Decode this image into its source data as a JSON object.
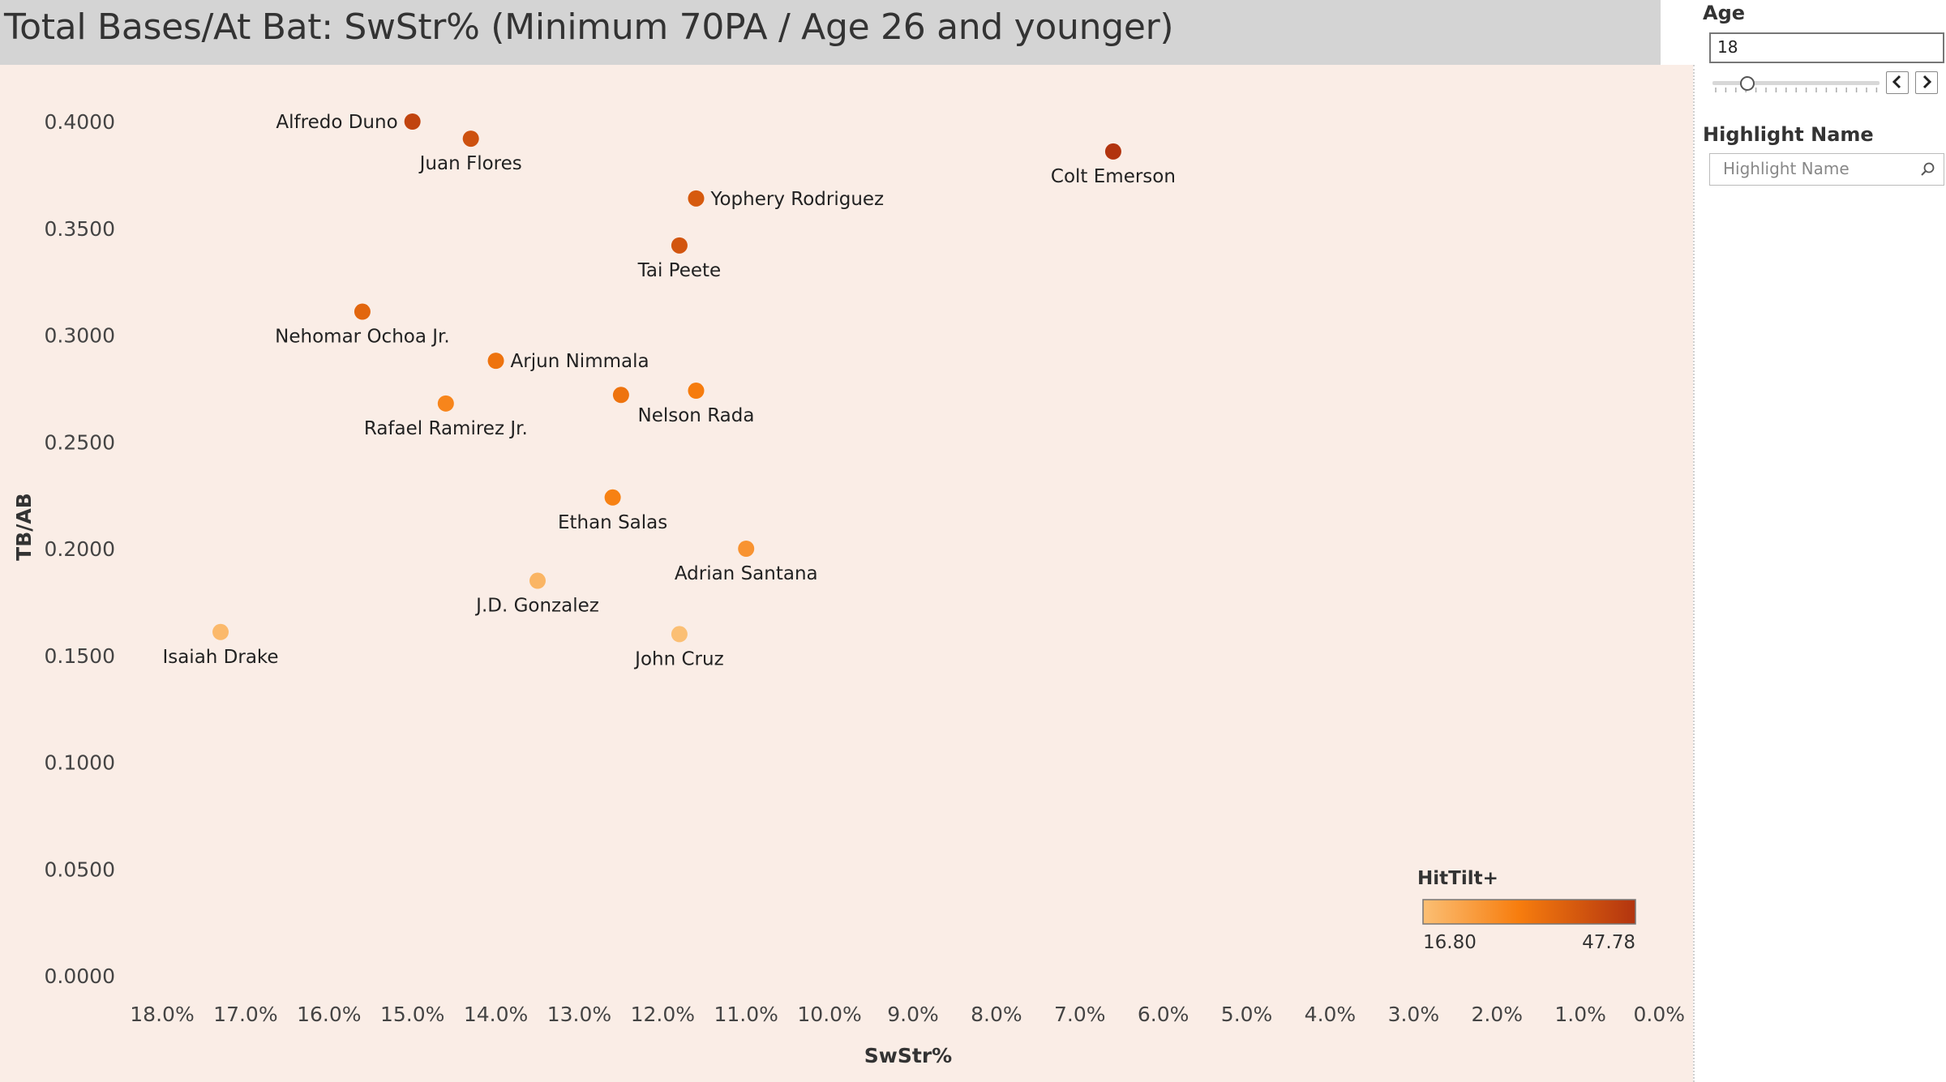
{
  "title": "Total Bases/At Bat: SwStr% (Minimum 70PA / Age 26 and younger)",
  "sidebar": {
    "age_label": "Age",
    "age_value": "18",
    "highlight_label": "Highlight Name",
    "highlight_placeholder": "Highlight Name"
  },
  "legend": {
    "title": "HitTilt+",
    "min_label": "16.80",
    "max_label": "47.78",
    "color_low": "#fbbf74",
    "color_mid": "#f77d0e",
    "color_high": "#b2340f"
  },
  "chart_data": {
    "type": "scatter",
    "title": "Total Bases/At Bat: SwStr% (Minimum 70PA / Age 26 and younger)",
    "xlabel": "SwStr%",
    "ylabel": "TB/AB",
    "x_reversed": true,
    "xlim": [
      18.0,
      0.0
    ],
    "ylim": [
      0.0,
      0.4
    ],
    "x_ticks": [
      "18.0%",
      "17.0%",
      "16.0%",
      "15.0%",
      "14.0%",
      "13.0%",
      "12.0%",
      "11.0%",
      "10.0%",
      "9.0%",
      "8.0%",
      "7.0%",
      "6.0%",
      "5.0%",
      "4.0%",
      "3.0%",
      "2.0%",
      "1.0%",
      "0.0%"
    ],
    "y_ticks": [
      "0.0000",
      "0.0500",
      "0.1000",
      "0.1500",
      "0.2000",
      "0.2500",
      "0.3000",
      "0.3500",
      "0.4000"
    ],
    "color_metric": "HitTilt+",
    "color_range": [
      16.8,
      47.78
    ],
    "points": [
      {
        "name": "Alfredo Duno",
        "x": 15.0,
        "y": 0.4,
        "c": 44.0,
        "label_pos": "left"
      },
      {
        "name": "Juan Flores",
        "x": 14.3,
        "y": 0.392,
        "c": 41.0,
        "label_pos": "below"
      },
      {
        "name": "Colt Emerson",
        "x": 6.6,
        "y": 0.386,
        "c": 47.78,
        "label_pos": "below"
      },
      {
        "name": "Yophery Rodriguez",
        "x": 11.6,
        "y": 0.364,
        "c": 39.0,
        "label_pos": "right"
      },
      {
        "name": "Tai Peete",
        "x": 11.8,
        "y": 0.342,
        "c": 40.0,
        "label_pos": "below"
      },
      {
        "name": "Nehomar Ochoa Jr.",
        "x": 15.6,
        "y": 0.311,
        "c": 36.0,
        "label_pos": "below"
      },
      {
        "name": "Arjun Nimmala",
        "x": 14.0,
        "y": 0.288,
        "c": 33.0,
        "label_pos": "right"
      },
      {
        "name": "",
        "x": 12.5,
        "y": 0.272,
        "c": 33.0,
        "label_pos": "none"
      },
      {
        "name": "Nelson Rada",
        "x": 11.6,
        "y": 0.274,
        "c": 31.0,
        "label_pos": "below"
      },
      {
        "name": "Rafael Ramirez Jr.",
        "x": 14.6,
        "y": 0.268,
        "c": 29.0,
        "label_pos": "below"
      },
      {
        "name": "Ethan Salas",
        "x": 12.6,
        "y": 0.224,
        "c": 30.0,
        "label_pos": "below"
      },
      {
        "name": "Adrian Santana",
        "x": 11.0,
        "y": 0.2,
        "c": 26.0,
        "label_pos": "below"
      },
      {
        "name": "J.D. Gonzalez",
        "x": 13.5,
        "y": 0.185,
        "c": 19.0,
        "label_pos": "below"
      },
      {
        "name": "Isaiah Drake",
        "x": 17.3,
        "y": 0.161,
        "c": 18.0,
        "label_pos": "below"
      },
      {
        "name": "John Cruz",
        "x": 11.8,
        "y": 0.16,
        "c": 16.8,
        "label_pos": "below"
      }
    ]
  }
}
